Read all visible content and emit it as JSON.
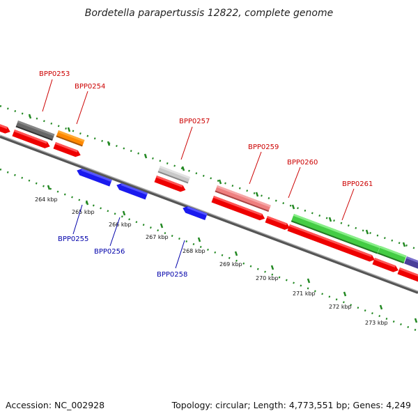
{
  "title": "Bordetella parapertussis 12822, complete genome",
  "footer": {
    "accession": "Accession: NC_002928",
    "topology": "Topology: circular; Length: 4,773,551 bp; Genes: 4,249"
  },
  "ticks": [
    "264 kbp",
    "265 kbp",
    "266 kbp",
    "267 kbp",
    "268 kbp",
    "269 kbp",
    "270 kbp",
    "271 kbp",
    "272 kbp",
    "273 kbp"
  ],
  "colors": {
    "forward_label": "#cc0000",
    "reverse_label": "#0000aa",
    "red": "#ee0000",
    "blue": "#1a1aee",
    "gray_dark": "#666666",
    "gray_light": "#c8c8c8",
    "orange": "#ff8800",
    "pink": "#ee7f7f",
    "green": "#44cc44",
    "purple": "#4a3f99",
    "dot_ring": "#228822"
  },
  "genes": {
    "BPP0253": "BPP0253",
    "BPP0254": "BPP0254",
    "BPP0255": "BPP0255",
    "BPP0256": "BPP0256",
    "BPP0257": "BPP0257",
    "BPP0258": "BPP0258",
    "BPP0259": "BPP0259",
    "BPP0260": "BPP0260",
    "BPP0261": "BPP0261"
  }
}
